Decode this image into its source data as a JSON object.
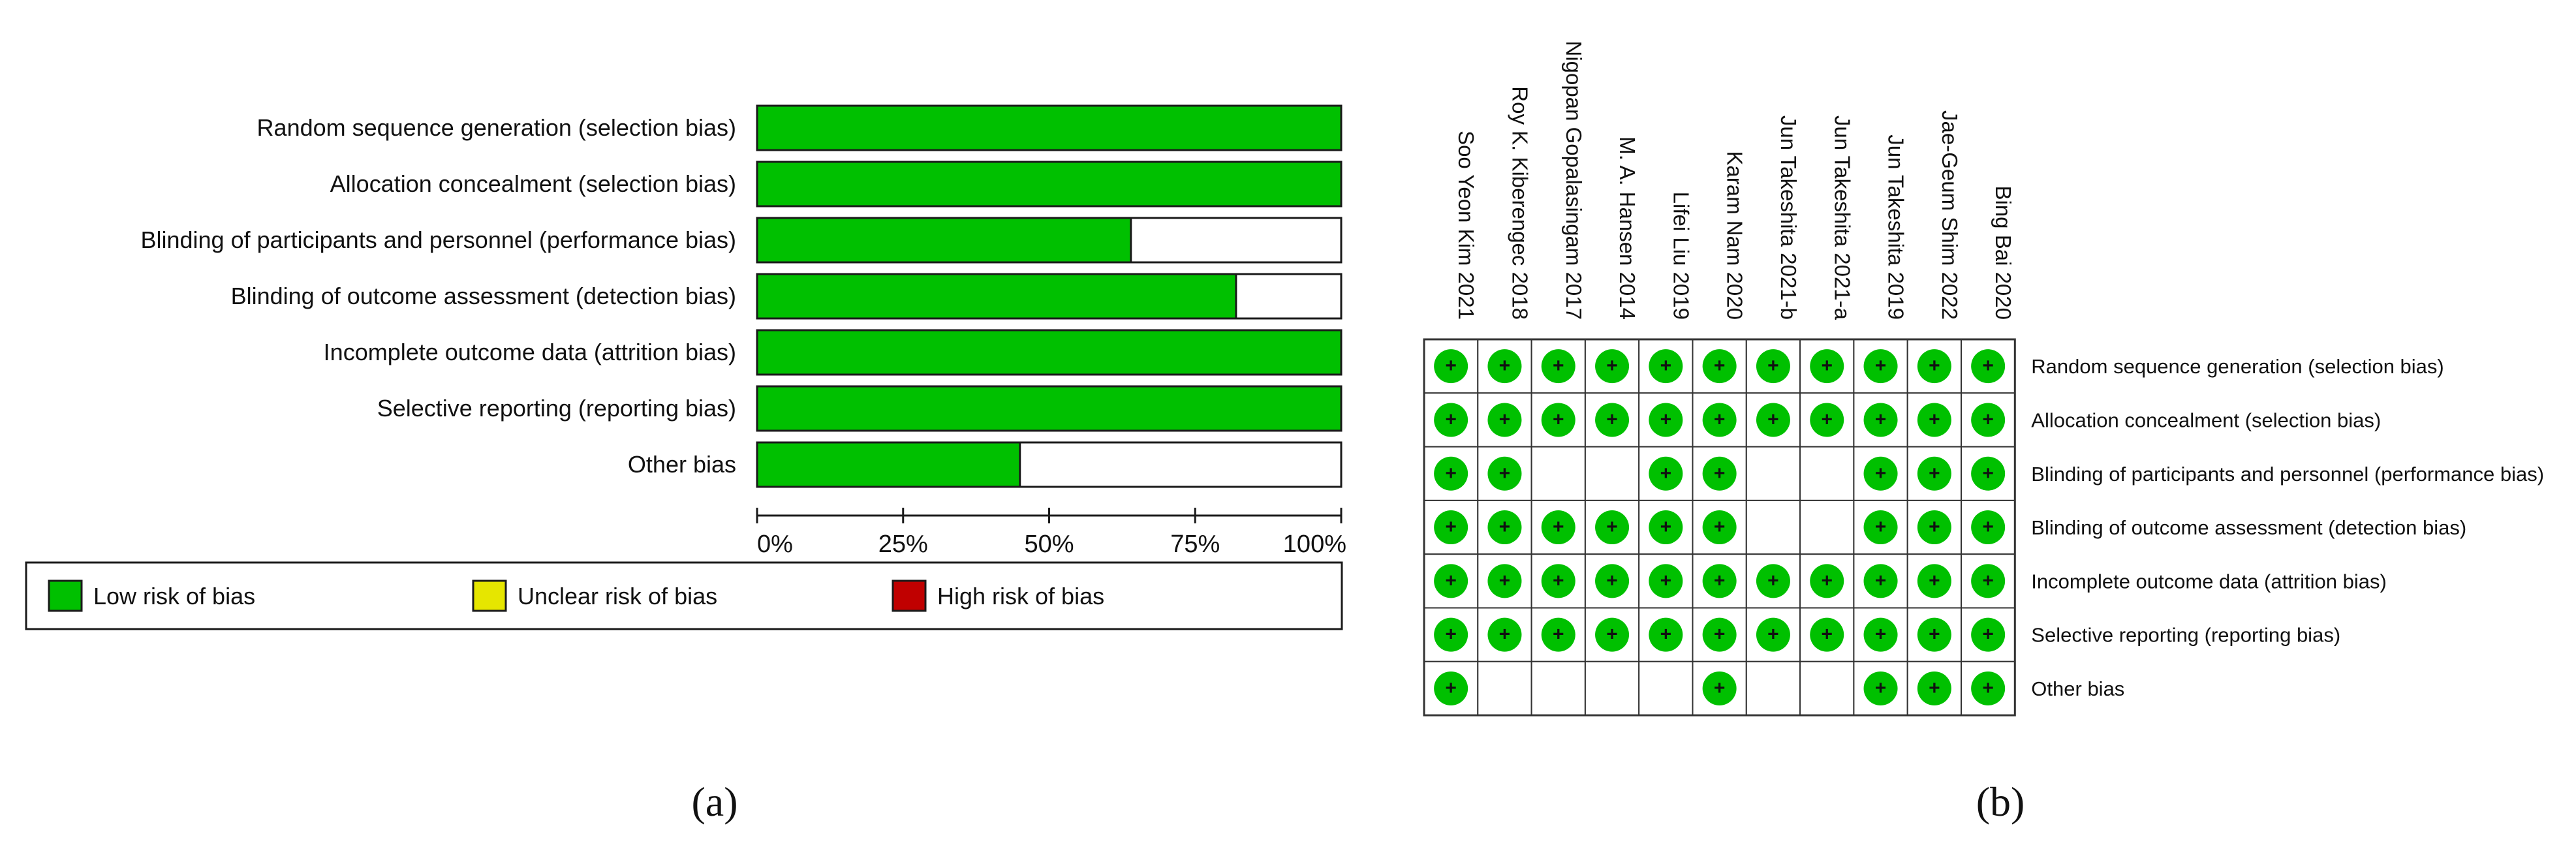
{
  "chart_data": [
    {
      "type": "bar",
      "panel": "(a)",
      "categories": [
        "Random sequence generation (selection bias)",
        "Allocation concealment (selection bias)",
        "Blinding of participants and personnel (performance bias)",
        "Blinding of outcome assessment (detection bias)",
        "Incomplete outcome data (attrition bias)",
        "Selective reporting (reporting bias)",
        "Other bias"
      ],
      "series": [
        {
          "name": "Low risk of bias",
          "color": "#00c000",
          "values": [
            100,
            100,
            64,
            82,
            100,
            100,
            45
          ]
        },
        {
          "name": "Unclear risk of bias",
          "color": "#e6e600",
          "values": [
            0,
            0,
            0,
            0,
            0,
            0,
            0
          ]
        },
        {
          "name": "High risk of bias",
          "color": "#c00000",
          "values": [
            0,
            0,
            0,
            0,
            0,
            0,
            0
          ]
        }
      ],
      "xticks": [
        "0%",
        "25%",
        "50%",
        "75%",
        "100%"
      ],
      "xlim": [
        0,
        100
      ],
      "legend": "bottom"
    },
    {
      "type": "table",
      "panel": "(b)",
      "studies": [
        "Soo Yeon Kim 2021",
        "Roy K. Kiberengec 2018",
        "Nigopan Gopalasingam 2017",
        "M. A. Hansen 2014",
        "Lifei Liu 2019",
        "Karam Nam 2020",
        "Jun Takeshita 2021-b",
        "Jun Takeshita 2021-a",
        "Jun Takeshita 2019",
        "Jae-Geum Shim 2022",
        "Bing Bai 2020"
      ],
      "domains": [
        "Random sequence generation (selection bias)",
        "Allocation concealment (selection bias)",
        "Blinding of participants and personnel (performance bias)",
        "Blinding of outcome assessment (detection bias)",
        "Incomplete outcome data (attrition bias)",
        "Selective reporting (reporting bias)",
        "Other bias"
      ],
      "low_risk_symbol": "+",
      "low_risk_color": "#00c000",
      "grid": [
        [
          1,
          1,
          1,
          1,
          1,
          1,
          1,
          1,
          1,
          1,
          1
        ],
        [
          1,
          1,
          1,
          1,
          1,
          1,
          1,
          1,
          1,
          1,
          1
        ],
        [
          1,
          1,
          0,
          0,
          1,
          1,
          0,
          0,
          1,
          1,
          1
        ],
        [
          1,
          1,
          1,
          1,
          1,
          1,
          0,
          0,
          1,
          1,
          1
        ],
        [
          1,
          1,
          1,
          1,
          1,
          1,
          1,
          1,
          1,
          1,
          1
        ],
        [
          1,
          1,
          1,
          1,
          1,
          1,
          1,
          1,
          1,
          1,
          1
        ],
        [
          1,
          0,
          0,
          0,
          0,
          1,
          0,
          0,
          1,
          1,
          1
        ]
      ]
    }
  ]
}
